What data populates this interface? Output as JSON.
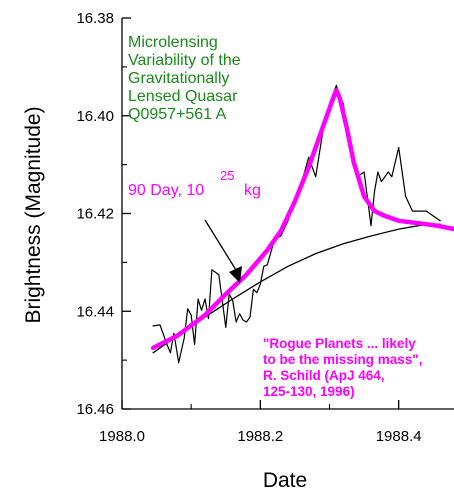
{
  "chart_data": {
    "type": "line",
    "xlabel": "Date",
    "ylabel": "Brightness (Magnitude)",
    "xlim": [
      1988.0,
      1988.48
    ],
    "ylim": [
      16.46,
      16.38
    ],
    "y_inverted": true,
    "x_ticks": [
      "1988.0",
      "1988.2",
      "1988.4"
    ],
    "x_tick_values": [
      1988.0,
      1988.2,
      1988.4
    ],
    "y_ticks": [
      "16.38",
      "16.40",
      "16.42",
      "16.44",
      "16.46"
    ],
    "y_tick_values": [
      16.38,
      16.4,
      16.42,
      16.44,
      16.46
    ],
    "grid": false,
    "annotations": {
      "title_lines": [
        "Microlensing",
        "Variability of the",
        "Gravitationally",
        "Lensed Quasar",
        "Q0957+561 A"
      ],
      "model_label_text": "90 Day, 10",
      "model_label_exponent": "25",
      "model_label_unit": "kg",
      "citation_lines": [
        "\"Rogue Planets ... likely",
        "to be the missing mass\",",
        "R. Schild (ApJ 464,",
        "125-130, 1996)"
      ]
    },
    "colors": {
      "observed": "#000000",
      "baseline": "#000000",
      "microlensing_model": "#ff00ff",
      "title_text": "#1a8a1a",
      "annotation_text": "#ff00ff"
    },
    "series": [
      {
        "x": [
          1988.045,
          1988.055,
          1988.065,
          1988.07,
          1988.075,
          1988.082,
          1988.09,
          1988.095,
          1988.1,
          1988.105,
          1988.11,
          1988.115,
          1988.12,
          1988.125,
          1988.13,
          1988.14,
          1988.15,
          1988.155,
          1988.16,
          1988.165,
          1988.17,
          1988.175,
          1988.18,
          1988.185,
          1988.19,
          1988.195,
          1988.2,
          1988.205,
          1988.21,
          1988.22,
          1988.23,
          1988.24,
          1988.25,
          1988.26,
          1988.27,
          1988.28,
          1988.29,
          1988.3,
          1988.31,
          1988.315,
          1988.32,
          1988.33,
          1988.34,
          1988.35,
          1988.36,
          1988.365,
          1988.37,
          1988.375,
          1988.38,
          1988.385,
          1988.39,
          1988.4,
          1988.41,
          1988.42,
          1988.44,
          1988.46
        ],
        "y": [
          16.443,
          16.4428,
          16.4468,
          16.4485,
          16.4445,
          16.4505,
          16.4455,
          16.4395,
          16.4408,
          16.4468,
          16.4375,
          16.4398,
          16.4375,
          16.4415,
          16.4315,
          16.4325,
          16.4433,
          16.4365,
          16.4378,
          16.4422,
          16.4405,
          16.4418,
          16.4422,
          16.4412,
          16.4355,
          16.4362,
          16.4345,
          16.4308,
          16.4305,
          16.4255,
          16.4245,
          16.4215,
          16.4175,
          16.4135,
          16.4085,
          16.4125,
          16.4035,
          16.3975,
          16.3938,
          16.3965,
          16.3975,
          16.4075,
          16.4125,
          16.4115,
          16.4225,
          16.4155,
          16.4115,
          16.4135,
          16.4125,
          16.4115,
          16.4125,
          16.4065,
          16.4165,
          16.4195,
          16.4195,
          16.4215
        ]
      },
      {
        "x": [
          1988.045,
          1988.08,
          1988.12,
          1988.16,
          1988.2,
          1988.24,
          1988.28,
          1988.32,
          1988.36,
          1988.4,
          1988.44,
          1988.46
        ],
        "y": [
          16.4485,
          16.445,
          16.4412,
          16.4375,
          16.434,
          16.4308,
          16.4282,
          16.4262,
          16.4246,
          16.4232,
          16.4222,
          16.4222
        ]
      },
      {
        "x": [
          1988.045,
          1988.08,
          1988.12,
          1988.15,
          1988.18,
          1988.21,
          1988.23,
          1988.25,
          1988.27,
          1988.285,
          1988.295,
          1988.305,
          1988.31,
          1988.315,
          1988.325,
          1988.335,
          1988.35,
          1988.365,
          1988.38,
          1988.4,
          1988.43,
          1988.455,
          1988.48
        ],
        "y": [
          16.4475,
          16.445,
          16.4408,
          16.4365,
          16.4325,
          16.4275,
          16.4235,
          16.4175,
          16.4105,
          16.4045,
          16.4005,
          16.3965,
          16.3948,
          16.3965,
          16.4025,
          16.4095,
          16.4165,
          16.4195,
          16.4205,
          16.4215,
          16.422,
          16.4225,
          16.4232
        ]
      }
    ]
  }
}
